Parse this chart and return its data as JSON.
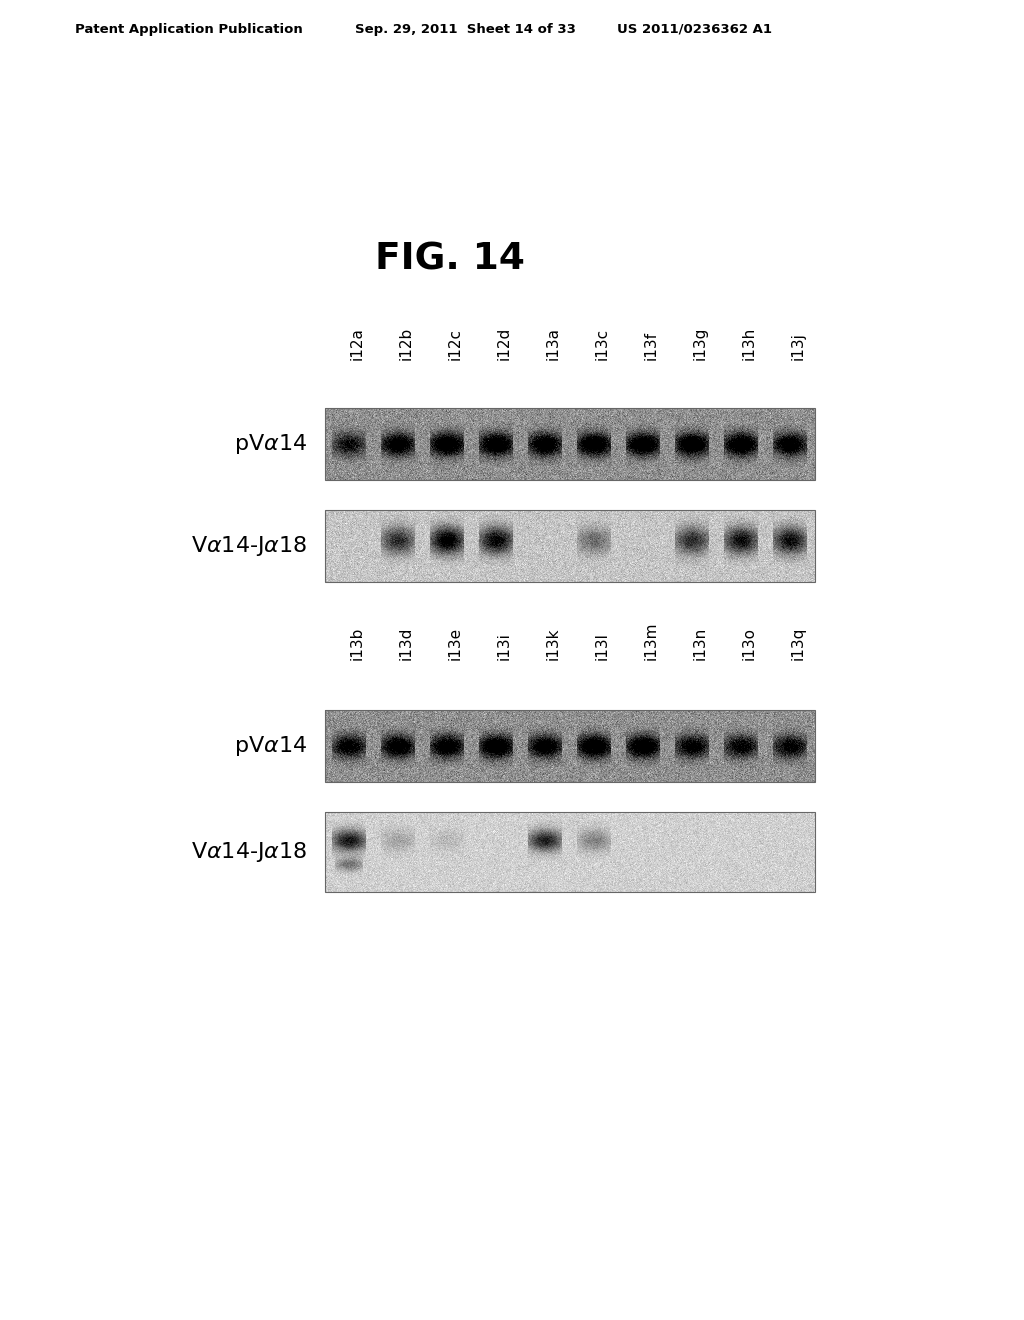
{
  "title": "FIG. 14",
  "header_left": "Patent Application Publication",
  "header_mid": "Sep. 29, 2011  Sheet 14 of 33",
  "header_right": "US 2011/0236362 A1",
  "panel1_labels": [
    "i12a",
    "i12b",
    "i12c",
    "i12d",
    "i13a",
    "i13c",
    "i13f",
    "i13g",
    "i13h",
    "i13j"
  ],
  "panel2_labels": [
    "i13b",
    "i13d",
    "i13e",
    "i13i",
    "i13k",
    "i13l",
    "i13m",
    "i13n",
    "i13o",
    "i13q"
  ],
  "bg_color": "#ffffff",
  "panel1_pva14_bands": [
    0.65,
    0.9,
    1.0,
    1.0,
    0.95,
    1.0,
    1.0,
    1.0,
    1.0,
    0.9
  ],
  "panel1_vja18_bands": [
    0.0,
    0.7,
    1.0,
    0.9,
    0.0,
    0.4,
    0.0,
    0.7,
    0.85,
    0.85
  ],
  "panel2_pva14_bands": [
    0.8,
    0.9,
    0.9,
    1.0,
    0.9,
    1.0,
    1.0,
    0.8,
    0.75,
    0.75
  ],
  "panel2_vja18_bands": [
    0.85,
    0.2,
    0.1,
    0.0,
    0.8,
    0.35,
    0.0,
    0.0,
    0.0,
    0.0
  ],
  "panel2_vja18_bands2": [
    0.5,
    0.0,
    0.0,
    0.0,
    0.0,
    0.0,
    0.0,
    0.0,
    0.0,
    0.0
  ],
  "gel_dark_bg": "#909090",
  "gel_light_bg": "#b8b8b8",
  "gel_vja18_bg": "#c5c5c5",
  "gel_vja18_light": "#d0d0d0"
}
